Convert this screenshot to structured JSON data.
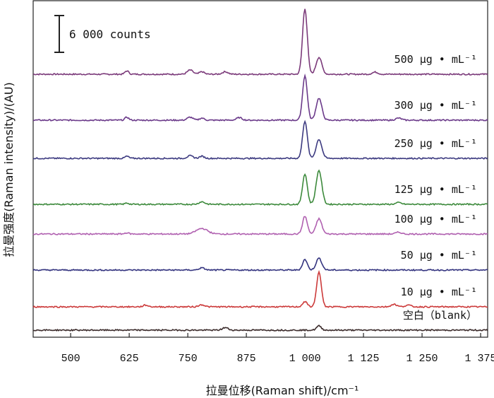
{
  "chart_data": {
    "type": "line",
    "xlabel": "拉曼位移(Raman shift)/cm⁻¹",
    "ylabel": "拉曼强度(Raman intensity)/(AU)",
    "xlim": [
      420,
      1390
    ],
    "x_ticks": [
      {
        "value": 500,
        "label": "500"
      },
      {
        "value": 625,
        "label": "625"
      },
      {
        "value": 750,
        "label": "750"
      },
      {
        "value": 875,
        "label": "875"
      },
      {
        "value": 1000,
        "label": "1 000"
      },
      {
        "value": 1125,
        "label": "1 125"
      },
      {
        "value": 1250,
        "label": "1 250"
      },
      {
        "value": 1375,
        "label": "1 375"
      }
    ],
    "scale_bar": {
      "label": "6 000 counts",
      "counts": 6000
    },
    "series": [
      {
        "name": "500 μg • mL⁻¹",
        "color": "#7b3a7a",
        "baseline": 1.0,
        "peaks": [
          [
            620,
            0.08,
            4
          ],
          [
            755,
            0.1,
            6
          ],
          [
            780,
            0.06,
            5
          ],
          [
            830,
            0.06,
            6
          ],
          [
            1000,
            1.55,
            5
          ],
          [
            1030,
            0.4,
            6
          ],
          [
            1150,
            0.05,
            6
          ]
        ]
      },
      {
        "name": "300 μg • mL⁻¹",
        "color": "#6b3a8a",
        "baseline": 1.0,
        "peaks": [
          [
            620,
            0.07,
            4
          ],
          [
            755,
            0.07,
            6
          ],
          [
            780,
            0.05,
            5
          ],
          [
            860,
            0.06,
            6
          ],
          [
            1000,
            1.05,
            5
          ],
          [
            1030,
            0.52,
            6
          ],
          [
            1200,
            0.05,
            6
          ]
        ]
      },
      {
        "name": "250 μg • mL⁻¹",
        "color": "#3c3a80",
        "baseline": 1.0,
        "peaks": [
          [
            620,
            0.05,
            4
          ],
          [
            755,
            0.06,
            6
          ],
          [
            780,
            0.05,
            5
          ],
          [
            1000,
            0.88,
            5
          ],
          [
            1030,
            0.45,
            6
          ]
        ]
      },
      {
        "name": "125 μg • mL⁻¹",
        "color": "#3d8a3c",
        "baseline": 1.0,
        "peaks": [
          [
            620,
            0.03,
            4
          ],
          [
            780,
            0.06,
            6
          ],
          [
            1000,
            0.72,
            5
          ],
          [
            1030,
            0.8,
            6
          ],
          [
            1200,
            0.04,
            6
          ]
        ]
      },
      {
        "name": "100 μg • mL⁻¹",
        "color": "#b060b0",
        "baseline": 1.0,
        "peaks": [
          [
            620,
            0.03,
            4
          ],
          [
            780,
            0.13,
            12
          ],
          [
            1000,
            0.42,
            5
          ],
          [
            1030,
            0.36,
            6
          ],
          [
            1200,
            0.04,
            6
          ]
        ]
      },
      {
        "name": "50 μg • mL⁻¹",
        "color": "#33337f",
        "baseline": 1.0,
        "peaks": [
          [
            780,
            0.05,
            6
          ],
          [
            1000,
            0.25,
            5
          ],
          [
            1030,
            0.28,
            6
          ]
        ]
      },
      {
        "name": "10 μg • mL⁻¹",
        "color": "#cc3a3a",
        "baseline": 1.0,
        "peaks": [
          [
            660,
            0.04,
            5
          ],
          [
            780,
            0.05,
            6
          ],
          [
            1000,
            0.12,
            5
          ],
          [
            1030,
            0.82,
            5
          ],
          [
            1190,
            0.06,
            6
          ],
          [
            1220,
            0.04,
            6
          ]
        ]
      },
      {
        "name": "空白（blank）",
        "color": "#3a2a2a",
        "baseline": 1.0,
        "peaks": [
          [
            830,
            0.06,
            6
          ],
          [
            1030,
            0.1,
            5
          ]
        ]
      }
    ]
  }
}
